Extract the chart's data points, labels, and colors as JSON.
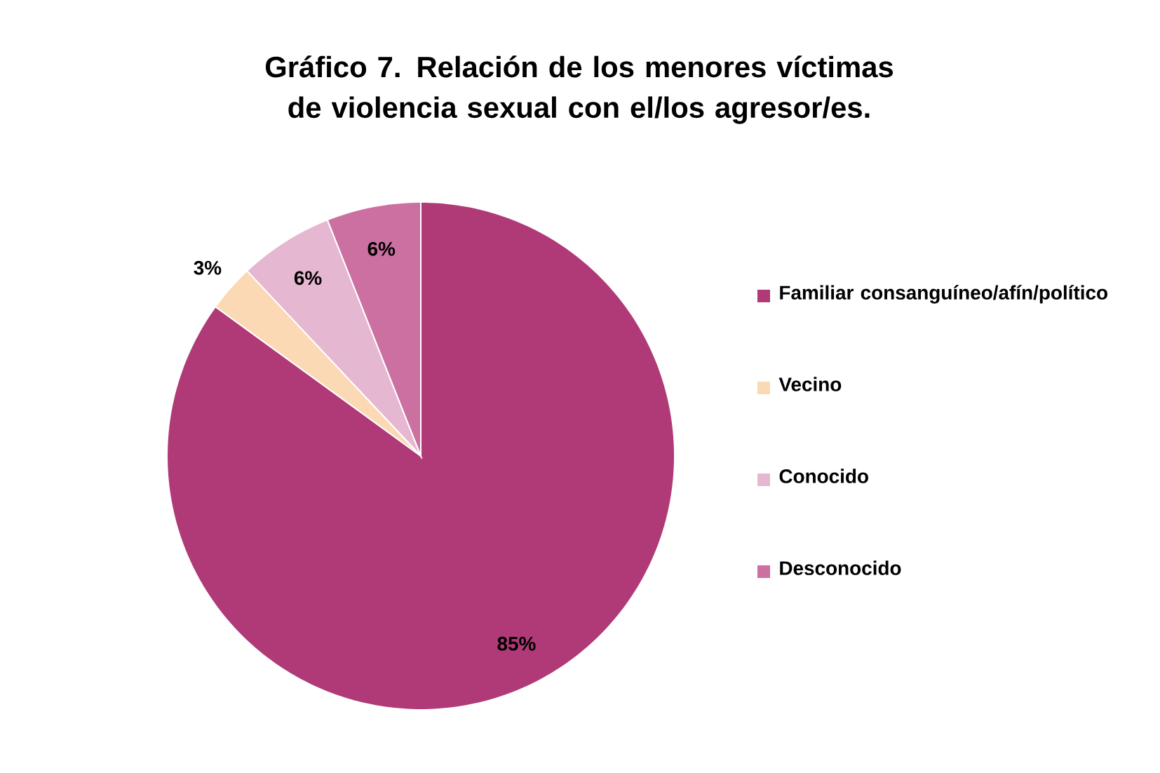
{
  "chart_data": {
    "type": "pie",
    "title": "Gráfico 7. Relación de los menores víctimas de violencia sexual con el/los agresor/es.",
    "categories": [
      "Familiar consanguíneo/afín/político",
      "Vecino",
      "Conocido",
      "Desconocido"
    ],
    "values": [
      85,
      3,
      6,
      6
    ],
    "value_labels": [
      "85%",
      "3%",
      "6%",
      "6%"
    ],
    "colors": [
      "#b03a77",
      "#fcd9b5",
      "#e6b7d1",
      "#cc6fa1"
    ],
    "legend": "right"
  }
}
